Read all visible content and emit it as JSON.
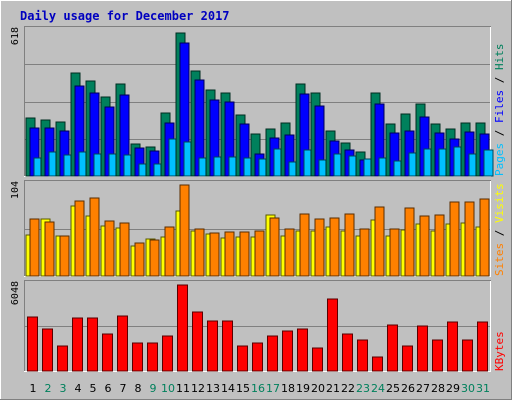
{
  "title": "Daily usage for December 2017",
  "colors": {
    "background": "#c0c0c0",
    "hits": "#00805c",
    "files": "#0000ff",
    "pages": "#00c0ff",
    "visits": "#ffff00",
    "sites": "#ff8000",
    "kbytes": "#ff0000",
    "weekday_label": "#000000",
    "weekend_label": "#00805c"
  },
  "chart_data": {
    "type": "bar",
    "categories": [
      "1",
      "2",
      "3",
      "4",
      "5",
      "6",
      "7",
      "8",
      "9",
      "10",
      "11",
      "12",
      "13",
      "14",
      "15",
      "16",
      "17",
      "18",
      "19",
      "20",
      "21",
      "22",
      "23",
      "24",
      "25",
      "26",
      "27",
      "28",
      "29",
      "30",
      "31"
    ],
    "weekend_days": [
      "2",
      "3",
      "9",
      "10",
      "16",
      "17",
      "23",
      "24",
      "30",
      "31"
    ],
    "panels": [
      {
        "name": "top",
        "ymax_label": "618",
        "ymax": 618,
        "right_label_parts": [
          {
            "text": "Pages",
            "color": "#00c0ff"
          },
          {
            "text": " / ",
            "color": "#000000"
          },
          {
            "text": "Files",
            "color": "#0000ff"
          },
          {
            "text": " / ",
            "color": "#000000"
          },
          {
            "text": "Hits",
            "color": "#00805c"
          }
        ],
        "series": [
          {
            "name": "Hits",
            "color": "#00805c",
            "values": [
              247,
              238,
              232,
              439,
              405,
              337,
              390,
              136,
              122,
              269,
              610,
              449,
              365,
              355,
              262,
              177,
              200,
              225,
              394,
              354,
              190,
              141,
              101,
              355,
              221,
              265,
              305,
              223,
              200,
              227,
              225
            ]
          },
          {
            "name": "Files",
            "color": "#0000ff",
            "values": [
              204,
              204,
              192,
              385,
              353,
              292,
              347,
              118,
              105,
              225,
              565,
              409,
              326,
              314,
              223,
              92,
              162,
              176,
              348,
              300,
              151,
              112,
              68,
              307,
              183,
              190,
              250,
              182,
              158,
              188,
              181
            ]
          },
          {
            "name": "Pages",
            "color": "#00c0ff",
            "values": [
              77,
              104,
              88,
              101,
              95,
              92,
              88,
              50,
              52,
              159,
              146,
              77,
              79,
              81,
              77,
              72,
              117,
              60,
              110,
              68,
              93,
              85,
              72,
              77,
              62,
              100,
              117,
              117,
              122,
              95,
              112
            ]
          }
        ]
      },
      {
        "name": "middle",
        "ymax_label": "104",
        "ymax": 104,
        "right_label_parts": [
          {
            "text": "Sites",
            "color": "#ff8000"
          },
          {
            "text": " / ",
            "color": "#000000"
          },
          {
            "text": "Visits",
            "color": "#ffff00"
          }
        ],
        "series": [
          {
            "name": "Visits",
            "color": "#ffff00",
            "values": [
              47,
              65,
              46,
              80,
              68,
              57,
              55,
              34,
              42,
              44,
              74,
              51,
              48,
              43,
              45,
              45,
              70,
              46,
              51,
              51,
              56,
              51,
              46,
              64,
              46,
              53,
              60,
              51,
              60,
              61,
              56
            ]
          },
          {
            "name": "Sites",
            "color": "#ff8000",
            "values": [
              65,
              62,
              46,
              86,
              89,
              63,
              61,
              38,
              41,
              56,
              104,
              54,
              49,
              50,
              50,
              51,
              66,
              54,
              71,
              65,
              66,
              71,
              54,
              79,
              54,
              78,
              68,
              70,
              85,
              84,
              88
            ]
          }
        ]
      },
      {
        "name": "bottom",
        "ymax_label": "6048",
        "ymax": 6048,
        "right_label_parts": [
          {
            "text": "KBytes",
            "color": "#ff0000"
          }
        ],
        "series": [
          {
            "name": "KBytes",
            "color": "#ff0000",
            "values": [
              3830,
              2948,
              1741,
              3707,
              3707,
              2578,
              3875,
              1953,
              1953,
              2433,
              6022,
              4171,
              3495,
              3495,
              1784,
              1953,
              2433,
              2817,
              2979,
              1636,
              5035,
              2578,
              2168,
              1003,
              3248,
              1741,
              3150,
              2167,
              3426,
              2167,
              3426
            ]
          }
        ]
      }
    ]
  }
}
